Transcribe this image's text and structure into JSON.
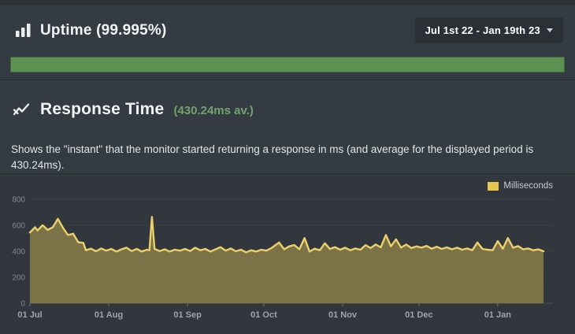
{
  "uptime": {
    "title": "Uptime (99.995%)",
    "date_range": "Jul 1st 22 - Jan 19th 23",
    "bar_color": "#5b9153",
    "bar_fill_percent": 100
  },
  "response": {
    "title": "Response Time",
    "average": "(430.24ms av.)",
    "description": "Shows the \"instant\" that the monitor started returning a response in ms (and average for the displayed period is 430.24ms)."
  },
  "chart_data": {
    "type": "area",
    "title": "Response Time",
    "legend": [
      {
        "label": "Milliseconds",
        "color": "#e7c64f"
      }
    ],
    "legend_position": "top-right",
    "line_color": "#ecd06a",
    "fill_color": "#7b7248",
    "grid": true,
    "ylim": [
      0,
      800
    ],
    "yticks": [
      0,
      200,
      400,
      600,
      800
    ],
    "x_unit": "days since Jul 1 22",
    "total_days": 202,
    "xticks": [
      {
        "label": "01 Jul",
        "day": 0
      },
      {
        "label": "01 Aug",
        "day": 31
      },
      {
        "label": "01 Sep",
        "day": 62
      },
      {
        "label": "01 Oct",
        "day": 92
      },
      {
        "label": "01 Nov",
        "day": 123
      },
      {
        "label": "01 Dec",
        "day": 153
      },
      {
        "label": "01 Jan",
        "day": 184
      }
    ],
    "points": [
      [
        0,
        545
      ],
      [
        2,
        585
      ],
      [
        3,
        560
      ],
      [
        5,
        600
      ],
      [
        7,
        565
      ],
      [
        9,
        585
      ],
      [
        11,
        650
      ],
      [
        13,
        580
      ],
      [
        15,
        525
      ],
      [
        17,
        535
      ],
      [
        19,
        470
      ],
      [
        21,
        465
      ],
      [
        22,
        408
      ],
      [
        24,
        420
      ],
      [
        26,
        400
      ],
      [
        28,
        422
      ],
      [
        30,
        405
      ],
      [
        32,
        418
      ],
      [
        34,
        398
      ],
      [
        36,
        415
      ],
      [
        38,
        428
      ],
      [
        40,
        402
      ],
      [
        42,
        418
      ],
      [
        44,
        398
      ],
      [
        46,
        412
      ],
      [
        47,
        408
      ],
      [
        48,
        665
      ],
      [
        49,
        418
      ],
      [
        51,
        402
      ],
      [
        53,
        415
      ],
      [
        55,
        398
      ],
      [
        57,
        412
      ],
      [
        59,
        405
      ],
      [
        61,
        418
      ],
      [
        63,
        402
      ],
      [
        65,
        428
      ],
      [
        67,
        408
      ],
      [
        69,
        418
      ],
      [
        71,
        398
      ],
      [
        73,
        415
      ],
      [
        75,
        432
      ],
      [
        77,
        405
      ],
      [
        79,
        422
      ],
      [
        81,
        400
      ],
      [
        83,
        412
      ],
      [
        85,
        392
      ],
      [
        87,
        408
      ],
      [
        89,
        398
      ],
      [
        91,
        412
      ],
      [
        93,
        405
      ],
      [
        95,
        425
      ],
      [
        98,
        468
      ],
      [
        100,
        415
      ],
      [
        102,
        438
      ],
      [
        104,
        448
      ],
      [
        106,
        415
      ],
      [
        108,
        502
      ],
      [
        110,
        398
      ],
      [
        112,
        420
      ],
      [
        114,
        408
      ],
      [
        116,
        462
      ],
      [
        118,
        418
      ],
      [
        120,
        432
      ],
      [
        122,
        412
      ],
      [
        124,
        428
      ],
      [
        126,
        408
      ],
      [
        128,
        422
      ],
      [
        130,
        412
      ],
      [
        132,
        448
      ],
      [
        134,
        425
      ],
      [
        136,
        452
      ],
      [
        138,
        430
      ],
      [
        140,
        525
      ],
      [
        142,
        438
      ],
      [
        144,
        492
      ],
      [
        146,
        428
      ],
      [
        148,
        452
      ],
      [
        150,
        425
      ],
      [
        152,
        438
      ],
      [
        154,
        428
      ],
      [
        156,
        442
      ],
      [
        158,
        420
      ],
      [
        160,
        435
      ],
      [
        162,
        418
      ],
      [
        164,
        430
      ],
      [
        166,
        415
      ],
      [
        168,
        428
      ],
      [
        170,
        412
      ],
      [
        172,
        422
      ],
      [
        174,
        408
      ],
      [
        176,
        468
      ],
      [
        178,
        418
      ],
      [
        180,
        412
      ],
      [
        182,
        408
      ],
      [
        184,
        478
      ],
      [
        186,
        420
      ],
      [
        188,
        502
      ],
      [
        190,
        428
      ],
      [
        192,
        440
      ],
      [
        194,
        415
      ],
      [
        196,
        422
      ],
      [
        198,
        408
      ],
      [
        200,
        415
      ],
      [
        202,
        400
      ]
    ]
  }
}
